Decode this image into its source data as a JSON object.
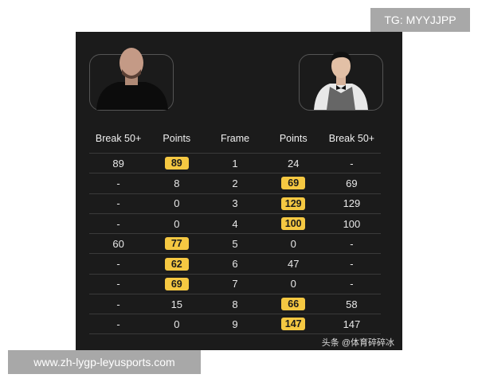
{
  "header": {
    "columns": [
      "Break 50+",
      "Points",
      "Frame",
      "Points",
      "Break 50+"
    ]
  },
  "rows": [
    {
      "left_break": "89",
      "left_points": "89",
      "frame": "1",
      "right_points": "24",
      "right_break": "-",
      "winner": "left"
    },
    {
      "left_break": "-",
      "left_points": "8",
      "frame": "2",
      "right_points": "69",
      "right_break": "69",
      "winner": "right"
    },
    {
      "left_break": "-",
      "left_points": "0",
      "frame": "3",
      "right_points": "129",
      "right_break": "129",
      "winner": "right"
    },
    {
      "left_break": "-",
      "left_points": "0",
      "frame": "4",
      "right_points": "100",
      "right_break": "100",
      "winner": "right"
    },
    {
      "left_break": "60",
      "left_points": "77",
      "frame": "5",
      "right_points": "0",
      "right_break": "-",
      "winner": "left"
    },
    {
      "left_break": "-",
      "left_points": "62",
      "frame": "6",
      "right_points": "47",
      "right_break": "-",
      "winner": "left"
    },
    {
      "left_break": "-",
      "left_points": "69",
      "frame": "7",
      "right_points": "0",
      "right_break": "-",
      "winner": "left"
    },
    {
      "left_break": "-",
      "left_points": "15",
      "frame": "8",
      "right_points": "66",
      "right_break": "58",
      "winner": "right"
    },
    {
      "left_break": "-",
      "left_points": "0",
      "frame": "9",
      "right_points": "147",
      "right_break": "147",
      "winner": "right"
    }
  ],
  "credit": "头条 @体育碎碎冰",
  "watermark_top": "TG: MYYJJPP",
  "watermark_bottom": "www.zh-lygp-leyusports.com",
  "colors": {
    "panel": "#1b1b1b",
    "highlight": "#f5c842"
  }
}
